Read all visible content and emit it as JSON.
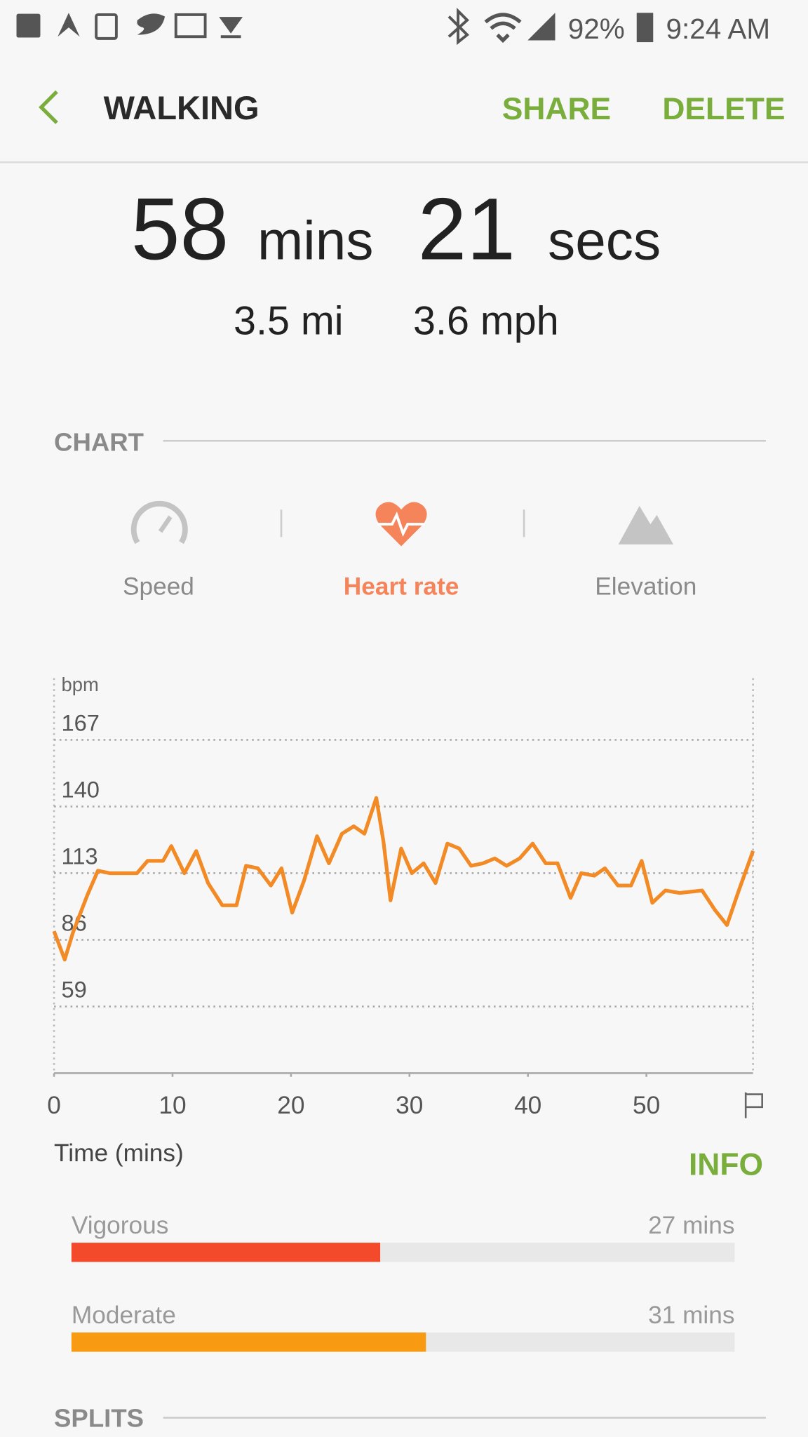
{
  "status_bar": {
    "battery": "92%",
    "time": "9:24 AM"
  },
  "header": {
    "title": "WALKING",
    "actions": [
      "SHARE",
      "DELETE"
    ]
  },
  "summary": {
    "minutes": "58",
    "minutes_unit": "mins",
    "seconds": "21",
    "seconds_unit": "secs",
    "distance": "3.5 mi",
    "speed": "3.6 mph"
  },
  "chart_section": {
    "title": "CHART",
    "tabs": [
      "Speed",
      "Heart rate",
      "Elevation"
    ]
  },
  "chart_data": {
    "type": "line",
    "y_unit": "bpm",
    "xlabel": "Time (mins)",
    "x": [
      0,
      0.9,
      1.6,
      2.8,
      3.7,
      4.7,
      7,
      7.9,
      9.2,
      9.9,
      11,
      12,
      13,
      14.2,
      15.4,
      16.2,
      17.2,
      18.3,
      19.2,
      20.1,
      21.1,
      22.2,
      23.2,
      24.3,
      25.3,
      26.2,
      27.2,
      27.8,
      28.4,
      29.3,
      30.2,
      31.2,
      32.2,
      33.2,
      34.2,
      35.2,
      36.2,
      37.2,
      38.2,
      39.3,
      40.4,
      41.5,
      42.5,
      43.6,
      44.5,
      45.6,
      46.5,
      47.6,
      48.7,
      49.6,
      50.5,
      51.6,
      52.8,
      54.7,
      55.8,
      56.8,
      57.8,
      59
    ],
    "values": [
      89.5,
      78,
      89,
      104,
      114,
      113,
      113,
      118,
      118,
      124,
      113,
      122,
      109,
      100,
      100,
      116,
      115,
      108,
      115,
      97,
      110,
      128,
      117,
      129,
      132,
      129,
      143.5,
      126,
      102,
      123,
      113,
      117,
      109,
      125,
      123,
      116,
      117,
      119,
      116,
      119,
      125,
      117,
      117,
      103,
      113,
      112,
      115,
      108,
      108,
      118,
      101,
      106,
      105,
      106,
      98,
      92,
      106,
      122
    ],
    "color": "#f28a26",
    "xlim": [
      0,
      59
    ],
    "ylim": [
      32,
      192
    ],
    "xticks": [
      0,
      10,
      20,
      30,
      40,
      50
    ],
    "yticks": [
      59,
      86,
      113,
      140,
      167
    ],
    "grid": true
  },
  "intensity": {
    "action": "INFO",
    "rows": [
      {
        "label": "Vigorous",
        "value": 27,
        "value_label": "27 mins",
        "color": "#f44a2c"
      },
      {
        "label": "Moderate",
        "value": 31,
        "value_label": "31 mins",
        "color": "#f89a12"
      }
    ]
  },
  "splits": {
    "title": "SPLITS"
  }
}
